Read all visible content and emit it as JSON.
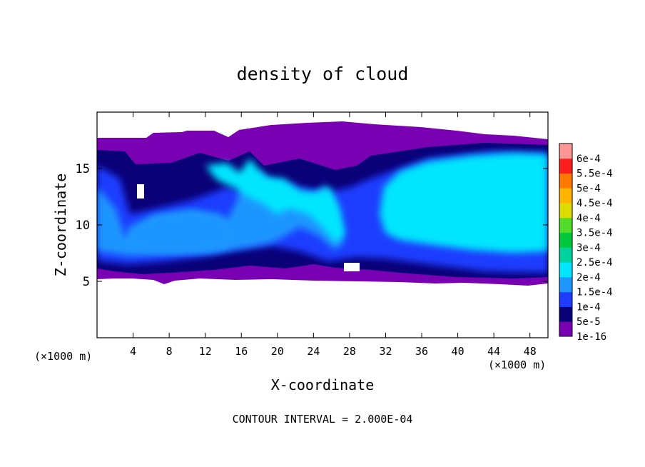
{
  "chart_data": {
    "type": "heatmap",
    "title": "density of cloud",
    "xlabel": "X-coordinate",
    "ylabel": "Z-coordinate",
    "x_unit_left": "(×1000 m)",
    "x_unit_right": "(×1000 m)",
    "xlim": [
      0,
      50
    ],
    "ylim": [
      0,
      20
    ],
    "xticks": [
      4,
      8,
      12,
      16,
      20,
      24,
      28,
      32,
      36,
      40,
      44,
      48
    ],
    "xtick_labels": [
      "4",
      "8",
      "12",
      "16",
      "20",
      "24",
      "28",
      "32",
      "36",
      "40",
      "44",
      "48"
    ],
    "yticks": [
      5,
      10,
      15
    ],
    "ytick_labels": [
      "5",
      "10",
      "15"
    ],
    "footer": "CONTOUR INTERVAL = 2.000E-04",
    "colorbar": {
      "levels": [
        "1e-16",
        "5e-5",
        "1e-4",
        "1.5e-4",
        "2e-4",
        "2.5e-4",
        "3e-4",
        "3.5e-4",
        "4e-4",
        "4.5e-4",
        "5e-4",
        "5.5e-4",
        "6e-4"
      ],
      "colors": [
        "#7a00b4",
        "#0a0078",
        "#1e3cff",
        "#1e96ff",
        "#00e6ff",
        "#00d2a0",
        "#00c83c",
        "#50dc28",
        "#dcdc00",
        "#ffb400",
        "#ff7800",
        "#ff1e1e",
        "#ff9696"
      ]
    },
    "cloud_band_z": [
      5,
      17.5
    ],
    "core_regions_z": [
      8,
      15
    ]
  }
}
